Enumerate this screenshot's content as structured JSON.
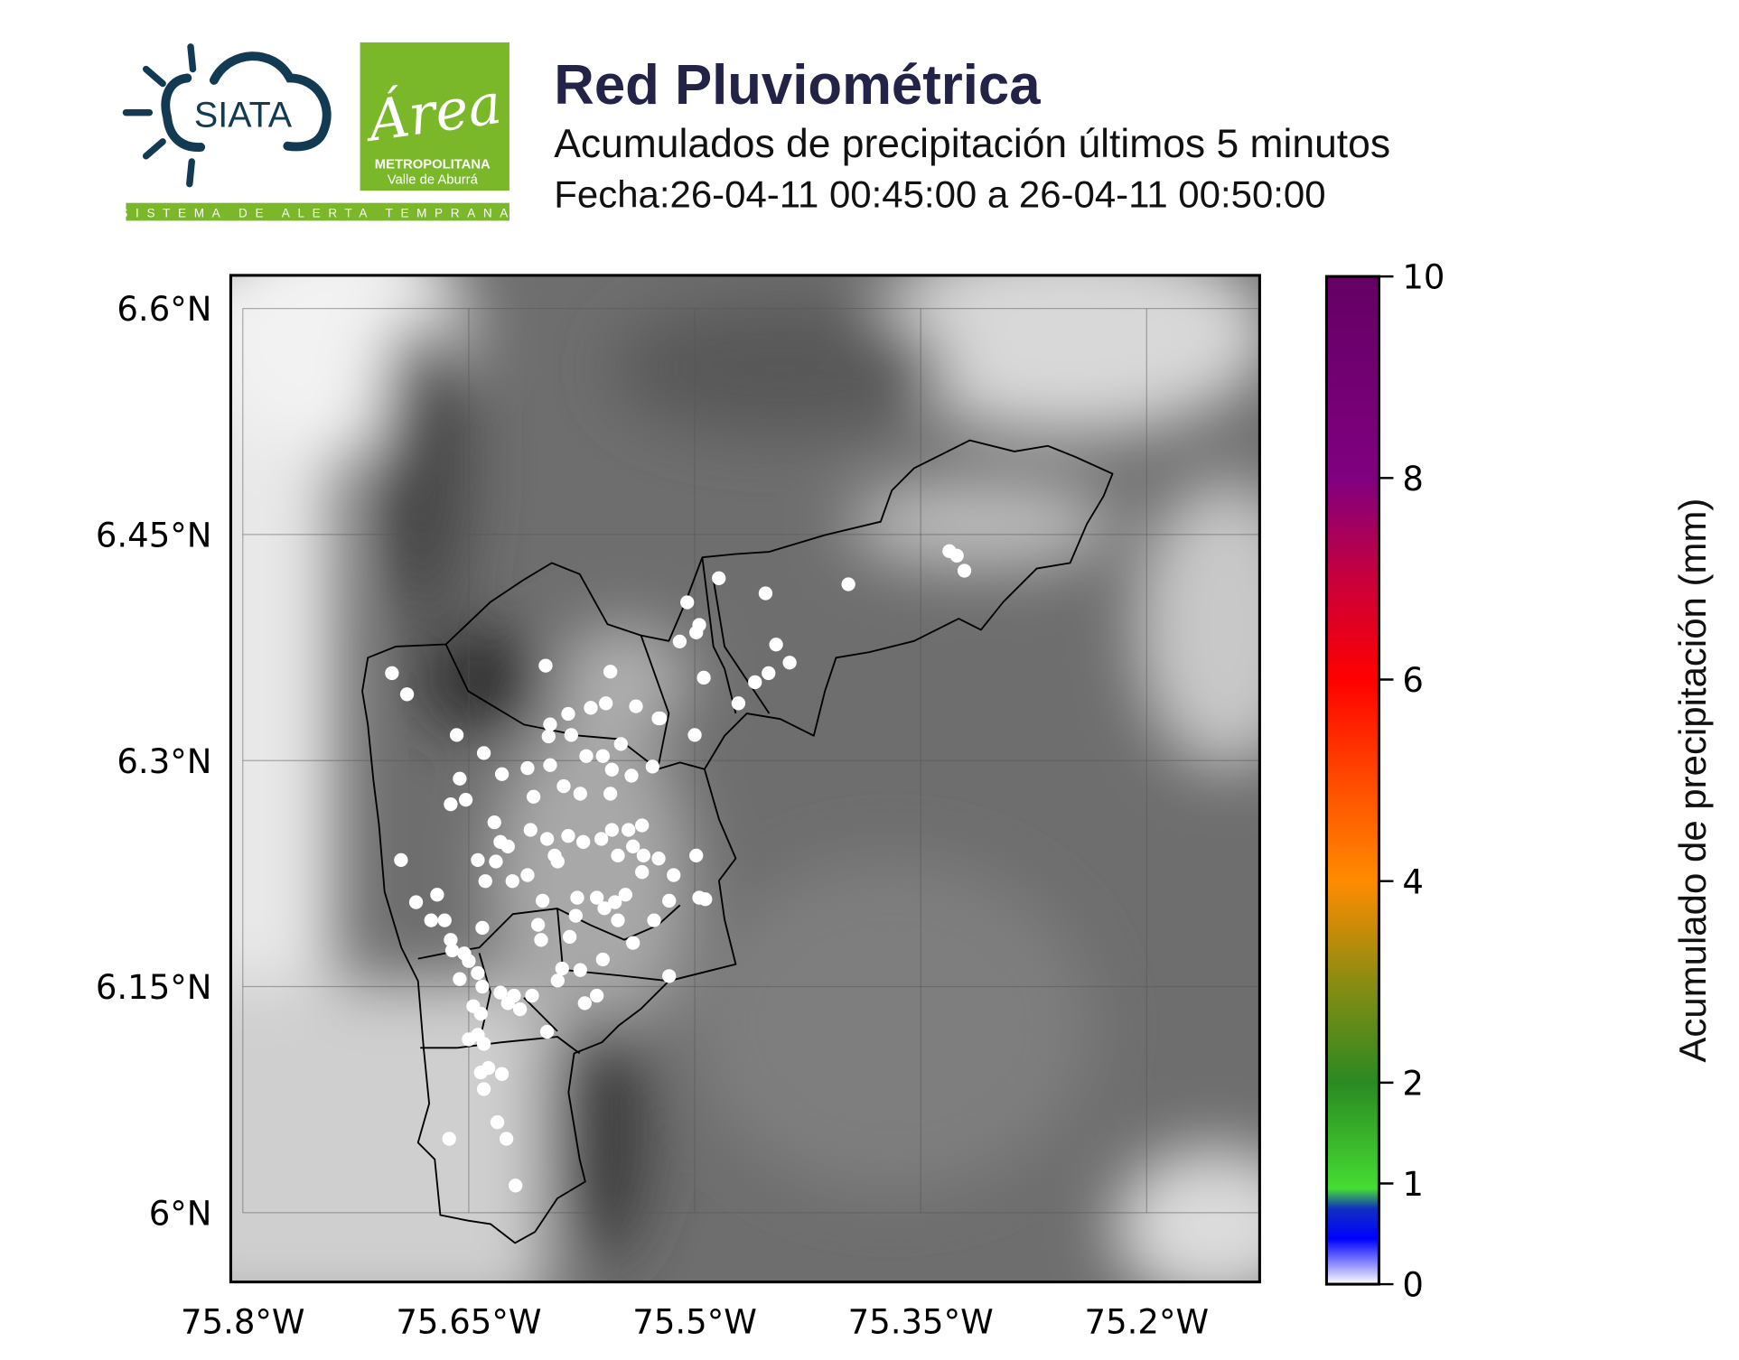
{
  "header": {
    "title": "Red Pluviométrica",
    "subtitle": "Acumulados de precipitación últimos 5 minutos",
    "date_range": "Fecha:26-04-11 00:45:00 a 26-04-11 00:50:00"
  },
  "logos": {
    "siata": "SIATA",
    "area_script": "Área",
    "area_line1": "METROPOLITANA",
    "area_line2": "Valle de Aburrá",
    "strip": "SISTEMA DE ALERTA TEMPRANA",
    "siata_color": "#123a52",
    "area_color": "#7ab829"
  },
  "map": {
    "xlim": [
      -75.808,
      -75.125
    ],
    "ylim": [
      5.954,
      6.622
    ],
    "lon_ticks": [
      -75.8,
      -75.65,
      -75.5,
      -75.35,
      -75.2
    ],
    "lon_labels": [
      "75.8°W",
      "75.65°W",
      "75.5°W",
      "75.35°W",
      "75.2°W"
    ],
    "lat_ticks": [
      6.6,
      6.45,
      6.3,
      6.15,
      6.0
    ],
    "lat_labels": [
      "6.6°N",
      "6.45°N",
      "6.3°N",
      "6.15°N",
      "6°N"
    ],
    "grid": true,
    "basemap": "grayscale elevation",
    "station_color": "#ffffff"
  },
  "chart_data": {
    "type": "scatter",
    "description_value": "station 5-min accumulated precipitation",
    "xlabel": "",
    "ylabel": "",
    "stations": [
      [
        -75.701,
        6.358
      ],
      [
        -75.691,
        6.344
      ],
      [
        -75.658,
        6.317
      ],
      [
        -75.656,
        6.288
      ],
      [
        -75.662,
        6.271
      ],
      [
        -75.652,
        6.274
      ],
      [
        -75.64,
        6.305
      ],
      [
        -75.628,
        6.291
      ],
      [
        -75.611,
        6.295
      ],
      [
        -75.599,
        6.363
      ],
      [
        -75.596,
        6.324
      ],
      [
        -75.597,
        6.316
      ],
      [
        -75.596,
        6.297
      ],
      [
        -75.584,
        6.331
      ],
      [
        -75.582,
        6.317
      ],
      [
        -75.569,
        6.335
      ],
      [
        -75.559,
        6.338
      ],
      [
        -75.556,
        6.359
      ],
      [
        -75.572,
        6.303
      ],
      [
        -75.561,
        6.303
      ],
      [
        -75.555,
        6.294
      ],
      [
        -75.549,
        6.311
      ],
      [
        -75.542,
        6.29
      ],
      [
        -75.539,
        6.336
      ],
      [
        -75.528,
        6.296
      ],
      [
        -75.524,
        6.328
      ],
      [
        -75.556,
        6.278
      ],
      [
        -75.576,
        6.278
      ],
      [
        -75.587,
        6.283
      ],
      [
        -75.607,
        6.276
      ],
      [
        -75.624,
        6.243
      ],
      [
        -75.609,
        6.254
      ],
      [
        -75.598,
        6.248
      ],
      [
        -75.593,
        6.237
      ],
      [
        -75.584,
        6.25
      ],
      [
        -75.574,
        6.246
      ],
      [
        -75.562,
        6.248
      ],
      [
        -75.555,
        6.254
      ],
      [
        -75.544,
        6.254
      ],
      [
        -75.541,
        6.243
      ],
      [
        -75.534,
        6.237
      ],
      [
        -75.551,
        6.237
      ],
      [
        -75.633,
        6.259
      ],
      [
        -75.629,
        6.246
      ],
      [
        -75.644,
        6.234
      ],
      [
        -75.639,
        6.22
      ],
      [
        -75.632,
        6.233
      ],
      [
        -75.695,
        6.234
      ],
      [
        -75.685,
        6.206
      ],
      [
        -75.671,
        6.211
      ],
      [
        -75.675,
        6.194
      ],
      [
        -75.666,
        6.194
      ],
      [
        -75.662,
        6.181
      ],
      [
        -75.641,
        6.189
      ],
      [
        -75.621,
        6.22
      ],
      [
        -75.611,
        6.224
      ],
      [
        -75.601,
        6.207
      ],
      [
        -75.591,
        6.233
      ],
      [
        -75.579,
        6.197
      ],
      [
        -75.565,
        6.209
      ],
      [
        -75.56,
        6.202
      ],
      [
        -75.551,
        6.194
      ],
      [
        -75.546,
        6.211
      ],
      [
        -75.535,
        6.226
      ],
      [
        -75.527,
        6.194
      ],
      [
        -75.517,
        6.207
      ],
      [
        -75.514,
        6.224
      ],
      [
        -75.499,
        6.237
      ],
      [
        -75.497,
        6.209
      ],
      [
        -75.493,
        6.208
      ],
      [
        -75.517,
        6.157
      ],
      [
        -75.541,
        6.179
      ],
      [
        -75.561,
        6.168
      ],
      [
        -75.565,
        6.144
      ],
      [
        -75.588,
        6.162
      ],
      [
        -75.604,
        6.191
      ],
      [
        -75.602,
        6.181
      ],
      [
        -75.608,
        6.144
      ],
      [
        -75.62,
        6.144
      ],
      [
        -75.629,
        6.146
      ],
      [
        -75.624,
        6.139
      ],
      [
        -75.644,
        6.159
      ],
      [
        -75.65,
        6.167
      ],
      [
        -75.656,
        6.155
      ],
      [
        -75.661,
        6.174
      ],
      [
        -75.653,
        6.172
      ],
      [
        -75.641,
        6.15
      ],
      [
        -75.647,
        6.137
      ],
      [
        -75.642,
        6.132
      ],
      [
        -75.644,
        6.118
      ],
      [
        -75.65,
        6.115
      ],
      [
        -75.598,
        6.12
      ],
      [
        -75.616,
        6.135
      ],
      [
        -75.64,
        6.112
      ],
      [
        -75.642,
        6.093
      ],
      [
        -75.637,
        6.096
      ],
      [
        -75.628,
        6.092
      ],
      [
        -75.64,
        6.082
      ],
      [
        -75.663,
        6.049
      ],
      [
        -75.631,
        6.06
      ],
      [
        -75.625,
        6.049
      ],
      [
        -75.619,
        6.018
      ],
      [
        -75.573,
        6.139
      ],
      [
        -75.591,
        6.154
      ],
      [
        -75.583,
        6.183
      ],
      [
        -75.576,
        6.161
      ],
      [
        -75.499,
        6.385
      ],
      [
        -75.497,
        6.39
      ],
      [
        -75.494,
        6.355
      ],
      [
        -75.5,
        6.317
      ],
      [
        -75.51,
        6.379
      ],
      [
        -75.523,
        6.328
      ],
      [
        -75.505,
        6.405
      ],
      [
        -75.484,
        6.421
      ],
      [
        -75.453,
        6.411
      ],
      [
        -75.446,
        6.377
      ],
      [
        -75.437,
        6.365
      ],
      [
        -75.451,
        6.358
      ],
      [
        -75.46,
        6.352
      ],
      [
        -75.471,
        6.338
      ],
      [
        -75.398,
        6.417
      ],
      [
        -75.331,
        6.439
      ],
      [
        -75.326,
        6.436
      ],
      [
        -75.321,
        6.426
      ],
      [
        -75.578,
        6.209
      ],
      [
        -75.553,
        6.206
      ],
      [
        -75.524,
        6.235
      ],
      [
        -75.535,
        6.257
      ]
    ]
  },
  "colorbar": {
    "label": "Acumulado de precipitación (mm)",
    "range": [
      0,
      10
    ],
    "ticks": [
      0,
      1,
      2,
      4,
      6,
      8,
      10
    ],
    "tick_labels": [
      "0",
      "1",
      "2",
      "4",
      "6",
      "8",
      "10"
    ],
    "stops": [
      [
        0,
        "#ffffff"
      ],
      [
        0.45,
        "#0000ff"
      ],
      [
        0.75,
        "#1030c0"
      ],
      [
        0.95,
        "#44dd33"
      ],
      [
        1.5,
        "#38b02a"
      ],
      [
        2,
        "#2a8a22"
      ],
      [
        3,
        "#8a8c12"
      ],
      [
        4,
        "#ff8c00"
      ],
      [
        5,
        "#ff4a00"
      ],
      [
        6,
        "#ff0000"
      ],
      [
        7,
        "#c8003c"
      ],
      [
        8,
        "#800080"
      ],
      [
        10,
        "#640064"
      ]
    ]
  }
}
